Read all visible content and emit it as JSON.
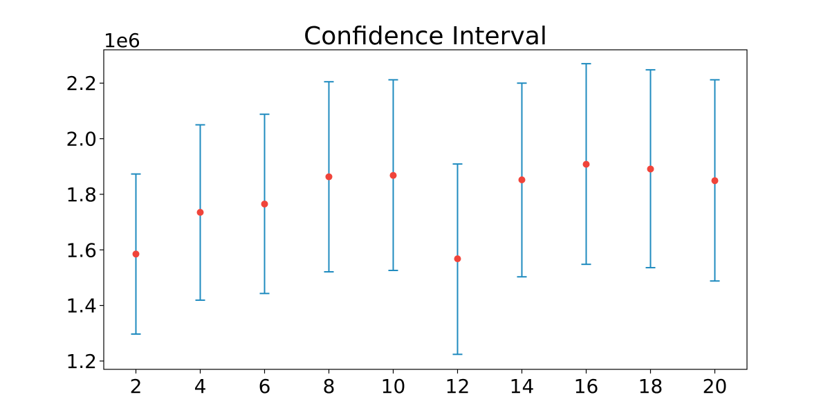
{
  "chart_data": {
    "type": "errorbar",
    "title": "Confidence Interval",
    "xlabel": "",
    "ylabel": "",
    "y_offset_label": "1e6",
    "x_ticks": [
      2,
      4,
      6,
      8,
      10,
      12,
      14,
      16,
      18,
      20
    ],
    "y_ticks": [
      1.2,
      1.4,
      1.6,
      1.8,
      2.0,
      2.2
    ],
    "y_tick_labels": [
      "1.2",
      "1.4",
      "1.6",
      "1.8",
      "2.0",
      "2.2"
    ],
    "xlim": [
      1,
      21
    ],
    "ylim": [
      1.17,
      2.32
    ],
    "grid": false,
    "colors": {
      "point": "#f0443a",
      "errorbar": "#1f8bbf"
    },
    "x": [
      2,
      4,
      6,
      8,
      10,
      12,
      14,
      16,
      18,
      20
    ],
    "mean": [
      1.585,
      1.735,
      1.765,
      1.863,
      1.868,
      1.568,
      1.852,
      1.908,
      1.891,
      1.849
    ],
    "lower": [
      1.297,
      1.419,
      1.443,
      1.521,
      1.526,
      1.224,
      1.503,
      1.548,
      1.536,
      1.488
    ],
    "upper": [
      1.873,
      2.05,
      2.088,
      2.205,
      2.212,
      1.909,
      2.2,
      2.27,
      2.248,
      2.212
    ]
  }
}
